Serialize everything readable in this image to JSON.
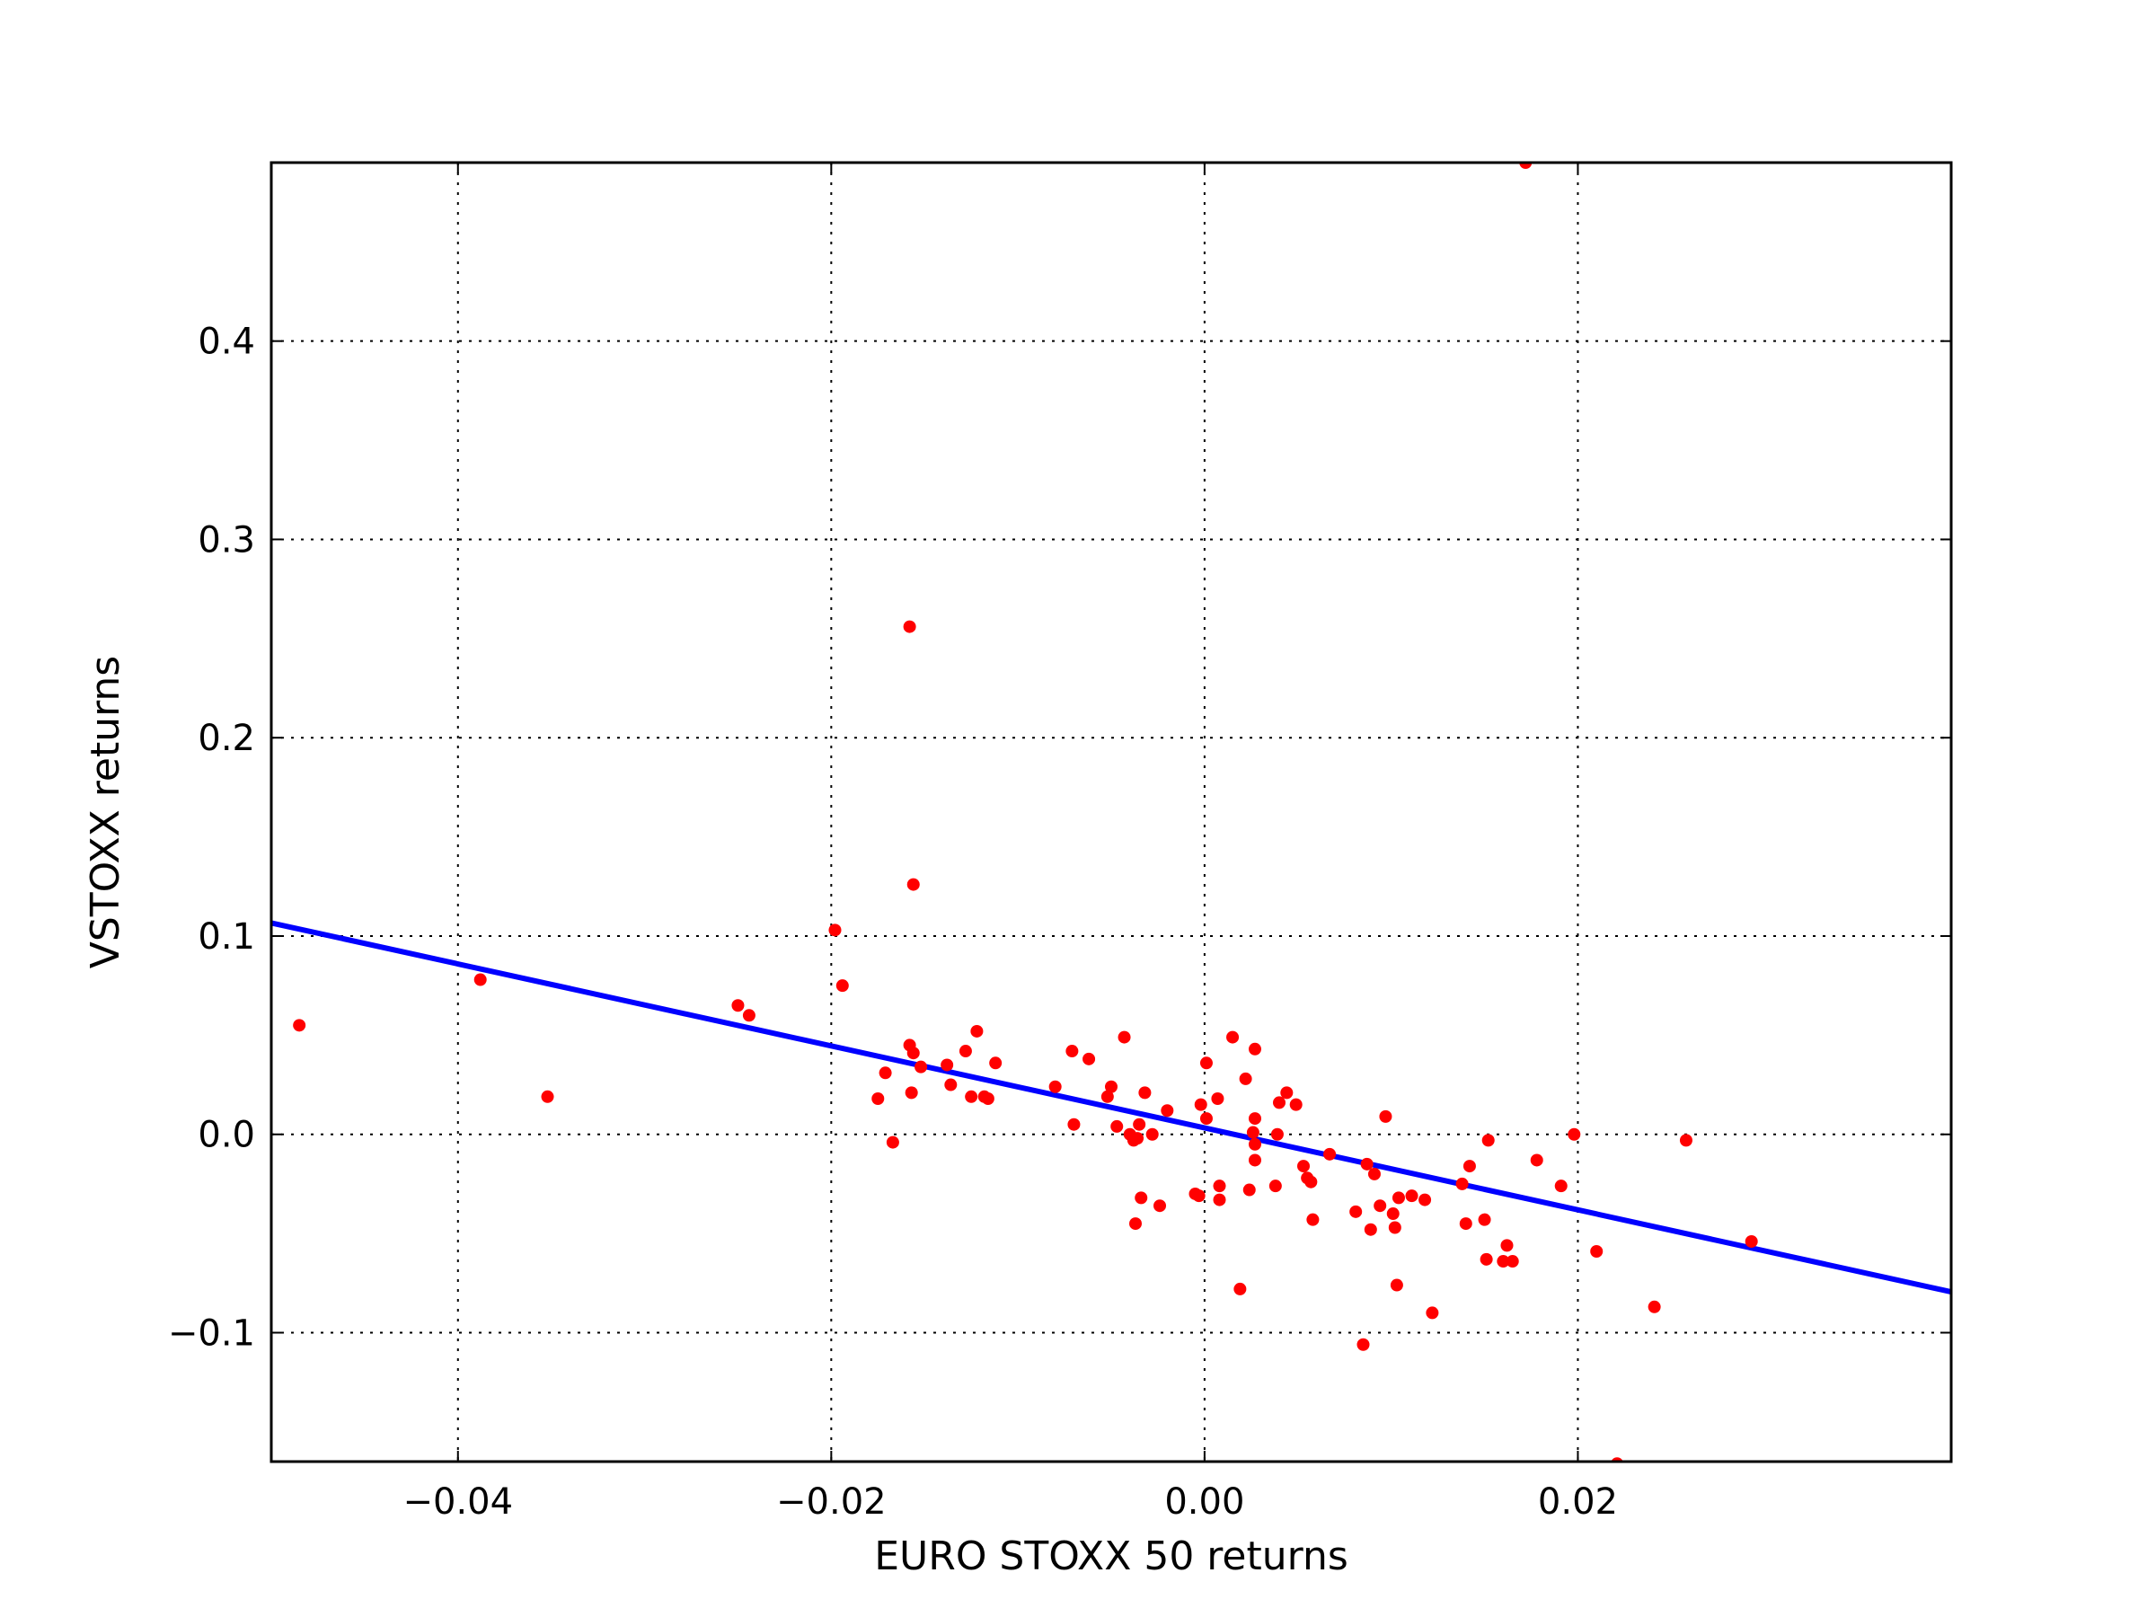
{
  "chart_data": {
    "type": "scatter",
    "title": "",
    "xlabel": "EURO STOXX 50 returns",
    "ylabel": "VSTOXX returns",
    "xlim": [
      -0.05,
      0.04
    ],
    "ylim": [
      -0.165,
      0.49
    ],
    "grid": true,
    "x_ticks": [
      -0.04,
      -0.02,
      0.0,
      0.02
    ],
    "x_tick_labels": [
      "−0.04",
      "−0.02",
      "0.00",
      "0.02"
    ],
    "y_ticks": [
      -0.1,
      0.0,
      0.1,
      0.2,
      0.3,
      0.4
    ],
    "y_tick_labels": [
      "−0.1",
      "0.0",
      "0.1",
      "0.2",
      "0.3",
      "0.4"
    ],
    "colors": {
      "points": "#ff0000",
      "fit_line": "#0000ff"
    },
    "scatter": {
      "points": [
        [
          -0.0485,
          0.055
        ],
        [
          -0.0388,
          0.078
        ],
        [
          -0.0352,
          0.019
        ],
        [
          -0.025,
          0.065
        ],
        [
          -0.0244,
          0.06
        ],
        [
          -0.0198,
          0.103
        ],
        [
          -0.0194,
          0.075
        ],
        [
          -0.0158,
          0.256
        ],
        [
          -0.0156,
          0.126
        ],
        [
          -0.0158,
          0.045
        ],
        [
          -0.0156,
          0.041
        ],
        [
          -0.0157,
          0.021
        ],
        [
          -0.0152,
          0.034
        ],
        [
          -0.0171,
          0.031
        ],
        [
          -0.0175,
          0.018
        ],
        [
          -0.0167,
          -0.004
        ],
        [
          -0.0138,
          0.035
        ],
        [
          -0.0136,
          0.025
        ],
        [
          -0.0128,
          0.042
        ],
        [
          -0.0125,
          0.019
        ],
        [
          -0.0122,
          0.052
        ],
        [
          -0.0118,
          0.019
        ],
        [
          -0.0116,
          0.018
        ],
        [
          -0.0112,
          0.036
        ],
        [
          -0.008,
          0.024
        ],
        [
          -0.0071,
          0.042
        ],
        [
          -0.007,
          0.005
        ],
        [
          -0.0062,
          0.038
        ],
        [
          -0.0052,
          0.019
        ],
        [
          -0.005,
          0.024
        ],
        [
          -0.0047,
          0.004
        ],
        [
          -0.0043,
          0.049
        ],
        [
          -0.004,
          0.0
        ],
        [
          -0.0038,
          -0.003
        ],
        [
          -0.0036,
          -0.002
        ],
        [
          -0.0035,
          0.005
        ],
        [
          -0.0034,
          -0.032
        ],
        [
          -0.0032,
          0.021
        ],
        [
          -0.0028,
          0.0
        ],
        [
          -0.0024,
          -0.036
        ],
        [
          -0.0037,
          -0.045
        ],
        [
          -0.002,
          0.012
        ],
        [
          -0.0005,
          -0.03
        ],
        [
          -0.0003,
          -0.031
        ],
        [
          -0.0002,
          0.015
        ],
        [
          0.0001,
          0.036
        ],
        [
          0.0001,
          0.008
        ],
        [
          0.0007,
          0.018
        ],
        [
          0.0008,
          -0.026
        ],
        [
          0.0008,
          -0.033
        ],
        [
          0.0015,
          0.049
        ],
        [
          0.0019,
          -0.078
        ],
        [
          0.0022,
          0.028
        ],
        [
          0.0024,
          -0.028
        ],
        [
          0.0026,
          0.001
        ],
        [
          0.0027,
          -0.005
        ],
        [
          0.0027,
          0.008
        ],
        [
          0.0027,
          -0.013
        ],
        [
          0.0027,
          0.043
        ],
        [
          0.0038,
          -0.026
        ],
        [
          0.0039,
          0.0
        ],
        [
          0.004,
          0.016
        ],
        [
          0.0044,
          0.021
        ],
        [
          0.0049,
          0.015
        ],
        [
          0.0053,
          -0.016
        ],
        [
          0.0055,
          -0.022
        ],
        [
          0.0057,
          -0.024
        ],
        [
          0.0058,
          -0.043
        ],
        [
          0.0067,
          -0.01
        ],
        [
          0.0081,
          -0.039
        ],
        [
          0.0085,
          -0.106
        ],
        [
          0.0087,
          -0.015
        ],
        [
          0.0089,
          -0.048
        ],
        [
          0.0091,
          -0.02
        ],
        [
          0.0094,
          -0.036
        ],
        [
          0.0097,
          0.009
        ],
        [
          0.0101,
          -0.04
        ],
        [
          0.0102,
          -0.047
        ],
        [
          0.0103,
          -0.076
        ],
        [
          0.0104,
          -0.032
        ],
        [
          0.0111,
          -0.031
        ],
        [
          0.0118,
          -0.033
        ],
        [
          0.0122,
          -0.09
        ],
        [
          0.0138,
          -0.025
        ],
        [
          0.014,
          -0.045
        ],
        [
          0.0142,
          -0.016
        ],
        [
          0.015,
          -0.043
        ],
        [
          0.0151,
          -0.063
        ],
        [
          0.0152,
          -0.003
        ],
        [
          0.016,
          -0.064
        ],
        [
          0.0162,
          -0.056
        ],
        [
          0.0165,
          -0.064
        ],
        [
          0.0172,
          0.49
        ],
        [
          0.0178,
          -0.013
        ],
        [
          0.0191,
          -0.026
        ],
        [
          0.0198,
          0.0
        ],
        [
          0.021,
          -0.059
        ],
        [
          0.0221,
          -0.166
        ],
        [
          0.0241,
          -0.087
        ],
        [
          0.0258,
          -0.003
        ],
        [
          0.0293,
          -0.054
        ]
      ]
    },
    "fit_line": {
      "x": [
        -0.05,
        0.04
      ],
      "y": [
        0.1066,
        -0.0794
      ]
    }
  }
}
